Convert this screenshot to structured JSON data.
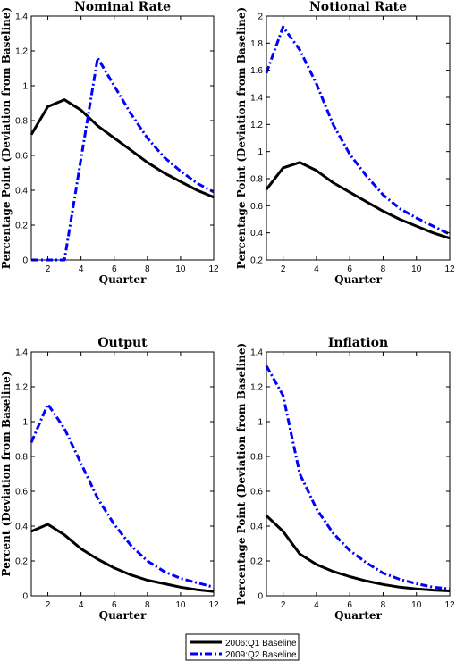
{
  "chart_data": [
    {
      "type": "line",
      "title": "Nominal Rate",
      "xlabel": "Quarter",
      "ylabel": "Percentage Point (Deviation from Baseline)",
      "x": [
        1,
        2,
        3,
        4,
        5,
        6,
        7,
        8,
        9,
        10,
        11,
        12
      ],
      "xlim": [
        1,
        12
      ],
      "ylim": [
        0,
        1.4
      ],
      "xticks": [
        2,
        4,
        6,
        8,
        10,
        12
      ],
      "yticks": [
        0,
        0.2,
        0.4,
        0.6,
        0.8,
        1,
        1.2,
        1.4
      ],
      "grid": false,
      "series": [
        {
          "name": "2006:Q1 Baseline",
          "values": [
            0.72,
            0.88,
            0.92,
            0.86,
            0.77,
            0.7,
            0.63,
            0.56,
            0.5,
            0.45,
            0.4,
            0.36
          ]
        },
        {
          "name": "2009:Q2 Baseline",
          "values": [
            0,
            0,
            0,
            0.58,
            1.16,
            1.0,
            0.84,
            0.7,
            0.59,
            0.51,
            0.44,
            0.39
          ]
        }
      ]
    },
    {
      "type": "line",
      "title": "Notional Rate",
      "xlabel": "Quarter",
      "ylabel": "Percentage Point (Deviation from Baseline)",
      "x": [
        1,
        2,
        3,
        4,
        5,
        6,
        7,
        8,
        9,
        10,
        11,
        12
      ],
      "xlim": [
        1,
        12
      ],
      "ylim": [
        0.2,
        2
      ],
      "xticks": [
        2,
        4,
        6,
        8,
        10,
        12
      ],
      "yticks": [
        0.2,
        0.4,
        0.6,
        0.8,
        1,
        1.2,
        1.4,
        1.6,
        1.8,
        2
      ],
      "grid": false,
      "series": [
        {
          "name": "2006:Q1 Baseline",
          "values": [
            0.72,
            0.88,
            0.92,
            0.86,
            0.77,
            0.7,
            0.63,
            0.56,
            0.5,
            0.45,
            0.4,
            0.36
          ]
        },
        {
          "name": "2009:Q2 Baseline",
          "values": [
            1.58,
            1.92,
            1.75,
            1.5,
            1.2,
            0.98,
            0.82,
            0.68,
            0.58,
            0.51,
            0.45,
            0.39
          ]
        }
      ]
    },
    {
      "type": "line",
      "title": "Output",
      "xlabel": "Quarter",
      "ylabel": "Percent (Deviation from Baseline)",
      "x": [
        1,
        2,
        3,
        4,
        5,
        6,
        7,
        8,
        9,
        10,
        11,
        12
      ],
      "xlim": [
        1,
        12
      ],
      "ylim": [
        0,
        1.4
      ],
      "xticks": [
        2,
        4,
        6,
        8,
        10,
        12
      ],
      "yticks": [
        0,
        0.2,
        0.4,
        0.6,
        0.8,
        1,
        1.2,
        1.4
      ],
      "grid": false,
      "series": [
        {
          "name": "2006:Q1 Baseline",
          "values": [
            0.37,
            0.41,
            0.35,
            0.27,
            0.21,
            0.16,
            0.12,
            0.09,
            0.07,
            0.05,
            0.035,
            0.025
          ]
        },
        {
          "name": "2009:Q2 Baseline",
          "values": [
            0.88,
            1.1,
            0.96,
            0.76,
            0.56,
            0.41,
            0.29,
            0.2,
            0.14,
            0.1,
            0.075,
            0.05
          ]
        }
      ]
    },
    {
      "type": "line",
      "title": "Inflation",
      "xlabel": "Quarter",
      "ylabel": "Percentage Point (Deviation from Baseline)",
      "x": [
        1,
        2,
        3,
        4,
        5,
        6,
        7,
        8,
        9,
        10,
        11,
        12
      ],
      "xlim": [
        1,
        12
      ],
      "ylim": [
        0,
        1.4
      ],
      "xticks": [
        2,
        4,
        6,
        8,
        10,
        12
      ],
      "yticks": [
        0,
        0.2,
        0.4,
        0.6,
        0.8,
        1,
        1.2,
        1.4
      ],
      "grid": false,
      "series": [
        {
          "name": "2006:Q1 Baseline",
          "values": [
            0.46,
            0.37,
            0.24,
            0.18,
            0.14,
            0.11,
            0.085,
            0.065,
            0.05,
            0.04,
            0.033,
            0.028
          ]
        },
        {
          "name": "2009:Q2 Baseline",
          "values": [
            1.32,
            1.15,
            0.7,
            0.5,
            0.36,
            0.26,
            0.19,
            0.13,
            0.095,
            0.07,
            0.05,
            0.04
          ]
        }
      ]
    }
  ],
  "legend": {
    "position": "bottom-center",
    "entries": [
      {
        "label": "2006:Q1 Baseline",
        "color": "#000000",
        "style": "solid"
      },
      {
        "label": "2009:Q2 Baseline",
        "color": "#0000ff",
        "style": "dash-dot"
      }
    ]
  }
}
